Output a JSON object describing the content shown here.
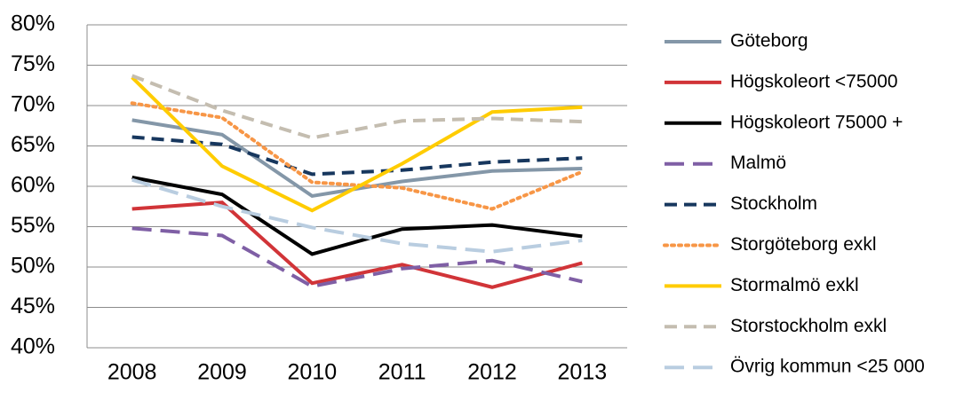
{
  "chart_data": {
    "type": "line",
    "categories": [
      "2008",
      "2009",
      "2010",
      "2011",
      "2012",
      "2013"
    ],
    "ylim": [
      40,
      80
    ],
    "yticks": [
      {
        "value": 40,
        "label": "40%"
      },
      {
        "value": 45,
        "label": "45%"
      },
      {
        "value": 50,
        "label": "50%"
      },
      {
        "value": 55,
        "label": "55%"
      },
      {
        "value": 60,
        "label": "60%"
      },
      {
        "value": 65,
        "label": "65%"
      },
      {
        "value": 70,
        "label": "70%"
      },
      {
        "value": 75,
        "label": "75%"
      },
      {
        "value": 80,
        "label": "80%"
      }
    ],
    "grid": true,
    "legend": "right",
    "series": [
      {
        "name": "Göteborg",
        "color": "#8497a8",
        "dash": "solid",
        "values": [
          68.2,
          66.4,
          58.8,
          60.6,
          61.9,
          62.2
        ]
      },
      {
        "name": "Högskoleort <75000",
        "color": "#d13438",
        "dash": "solid",
        "values": [
          57.2,
          58.0,
          48.0,
          50.3,
          47.5,
          50.5
        ]
      },
      {
        "name": "Högskoleort 75000 +",
        "color": "#000000",
        "dash": "solid",
        "values": [
          61.1,
          59.0,
          51.6,
          54.7,
          55.2,
          53.8
        ]
      },
      {
        "name": "Malmö",
        "color": "#7f5fa5",
        "dash": "longdash",
        "values": [
          54.8,
          53.9,
          47.6,
          49.8,
          50.8,
          48.2
        ]
      },
      {
        "name": "Stockholm",
        "color": "#17375e",
        "dash": "dash",
        "values": [
          66.1,
          65.2,
          61.5,
          62.0,
          63.0,
          63.5
        ]
      },
      {
        "name": "Storgöteborg exkl",
        "color": "#f79646",
        "dash": "dot",
        "values": [
          70.3,
          68.5,
          60.5,
          59.8,
          57.2,
          61.8
        ]
      },
      {
        "name": "Stormalmö exkl",
        "color": "#ffcc00",
        "dash": "solid",
        "values": [
          73.5,
          62.5,
          57.0,
          62.8,
          69.2,
          69.8
        ]
      },
      {
        "name": "Storstockholm exkl",
        "color": "#c4bdb0",
        "dash": "dash",
        "values": [
          73.7,
          69.4,
          66.0,
          68.1,
          68.4,
          68.0
        ]
      },
      {
        "name": "Övrig kommun <25 000",
        "color": "#b9cde0",
        "dash": "longdash",
        "values": [
          60.8,
          57.5,
          54.9,
          52.9,
          51.9,
          53.3
        ]
      }
    ]
  }
}
